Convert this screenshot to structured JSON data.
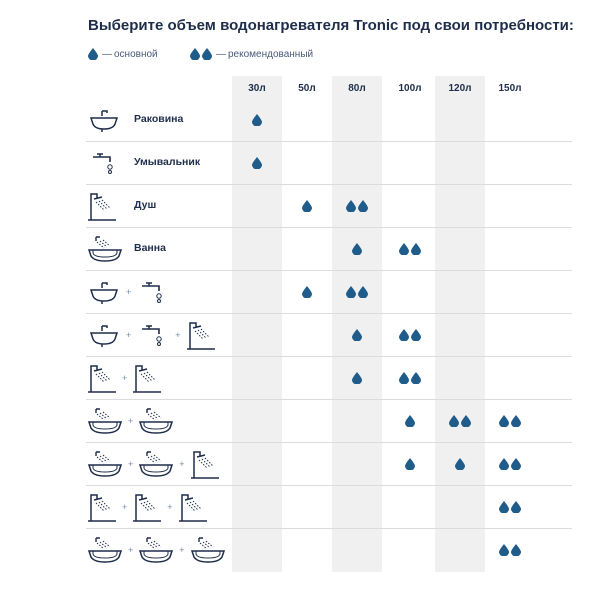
{
  "title": "Выберите объем водонагревателя Tronic под свои потребности:",
  "legend": {
    "basic_label": "основной",
    "recommended_label": "рекомендованный",
    "dash": "—"
  },
  "columns": [
    "30л",
    "50л",
    "80л",
    "100л",
    "120л",
    "150л"
  ],
  "colors": {
    "drop": "#1f5c8a",
    "text": "#1e2d4a",
    "shade": "#f0f0f0"
  },
  "rows": [
    {
      "label": "Раковина",
      "icons": [
        "sink-icon"
      ],
      "values": [
        1,
        0,
        0,
        0,
        0,
        0
      ]
    },
    {
      "label": "Умывальник",
      "icons": [
        "faucet-icon"
      ],
      "values": [
        1,
        0,
        0,
        0,
        0,
        0
      ]
    },
    {
      "label": "Душ",
      "icons": [
        "shower-icon"
      ],
      "values": [
        0,
        1,
        2,
        0,
        0,
        0
      ]
    },
    {
      "label": "Ванна",
      "icons": [
        "bathtub-icon"
      ],
      "values": [
        0,
        0,
        1,
        2,
        0,
        0
      ]
    },
    {
      "label": "",
      "icons": [
        "sink-icon",
        "faucet-icon"
      ],
      "values": [
        0,
        1,
        2,
        0,
        0,
        0
      ]
    },
    {
      "label": "",
      "icons": [
        "sink-icon",
        "faucet-icon",
        "shower-icon"
      ],
      "values": [
        0,
        0,
        1,
        2,
        0,
        0
      ]
    },
    {
      "label": "",
      "icons": [
        "shower-icon",
        "shower-icon"
      ],
      "values": [
        0,
        0,
        1,
        2,
        0,
        0
      ]
    },
    {
      "label": "",
      "icons": [
        "bathtub-icon",
        "bathtub-icon"
      ],
      "values": [
        0,
        0,
        0,
        1,
        2,
        2
      ]
    },
    {
      "label": "",
      "icons": [
        "bathtub-icon",
        "bathtub-icon",
        "shower-icon"
      ],
      "values": [
        0,
        0,
        0,
        1,
        1,
        2
      ]
    },
    {
      "label": "",
      "icons": [
        "shower-icon",
        "shower-icon",
        "shower-icon"
      ],
      "values": [
        0,
        0,
        0,
        0,
        0,
        2
      ]
    },
    {
      "label": "",
      "icons": [
        "bathtub-icon",
        "bathtub-icon",
        "bathtub-icon"
      ],
      "values": [
        0,
        0,
        0,
        0,
        0,
        2
      ]
    }
  ],
  "plus": "+"
}
